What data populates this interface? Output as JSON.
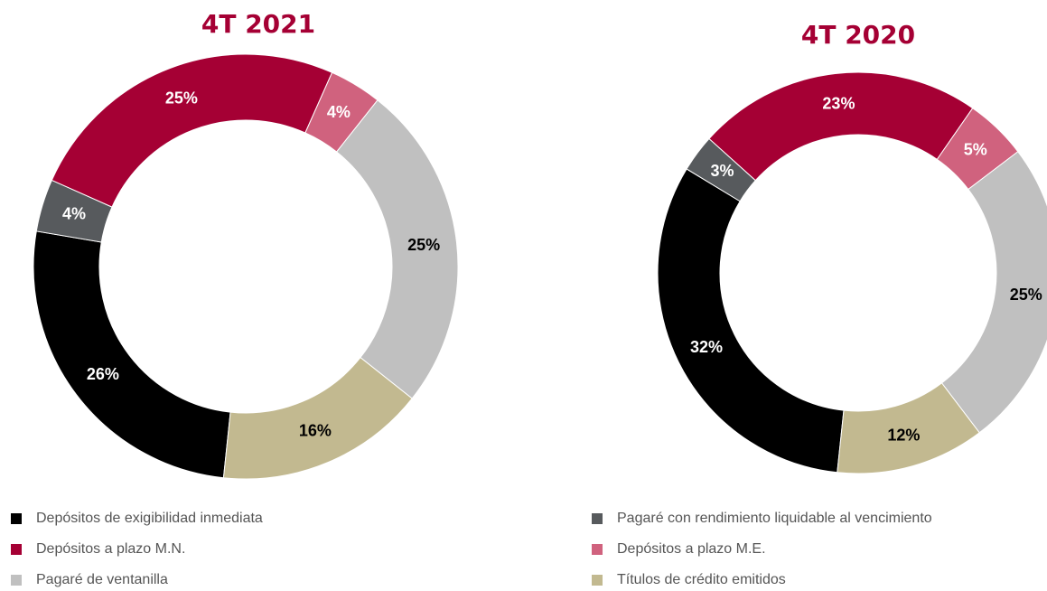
{
  "chart_data": [
    {
      "type": "pie",
      "title": "4T 2021",
      "values": [
        26,
        25,
        25,
        4,
        4,
        16
      ],
      "value_labels": [
        "26%",
        "25%",
        "25%",
        "4%",
        "4%",
        "16%"
      ]
    },
    {
      "type": "pie",
      "title": "4T 2020",
      "values": [
        32,
        23,
        25,
        3,
        5,
        12
      ],
      "value_labels": [
        "32%",
        "23%",
        "25%",
        "3%",
        "5%",
        "12%"
      ]
    }
  ],
  "legend": {
    "labels": [
      "Depósitos de exigibilidad inmediata",
      "Depósitos a plazo M.N.",
      "Pagaré de ventanilla",
      "Pagaré con rendimiento liquidable al vencimiento",
      "Depósitos a plazo M.E.",
      "Títulos de crédito emitidos"
    ],
    "colors": [
      "#000000",
      "#a50034",
      "#c0c0c0",
      "#575a5d",
      "#d0627e",
      "#c2b990"
    ]
  }
}
